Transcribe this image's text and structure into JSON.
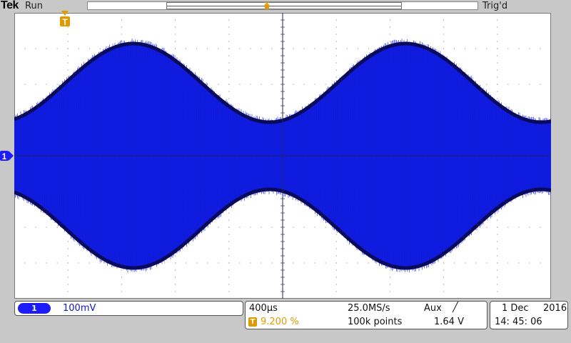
{
  "header": {
    "brand": "Tek",
    "acquisition_state": "Run",
    "trigger_state": "Trig'd"
  },
  "channel": {
    "id": "1",
    "scale": "100mV",
    "color": "#1c1cff"
  },
  "timebase": {
    "horizontal_scale": "400µs",
    "trigger_position": "9.200 %",
    "sample_rate": "25.0MS/s",
    "record_length": "100k points"
  },
  "trigger": {
    "source": "Aux",
    "slope_symbol": "╱",
    "level": "1.64 V",
    "marker_label": "T"
  },
  "datetime": {
    "day_month": "1 Dec",
    "year": "2016",
    "time": "14: 45: 06"
  },
  "colors": {
    "screen_bg": "#ffffff",
    "waveform": "#0b17d6",
    "envelope": "#0a0a5a",
    "grid": "#777777",
    "trigger_orange": "#e09a00"
  }
}
